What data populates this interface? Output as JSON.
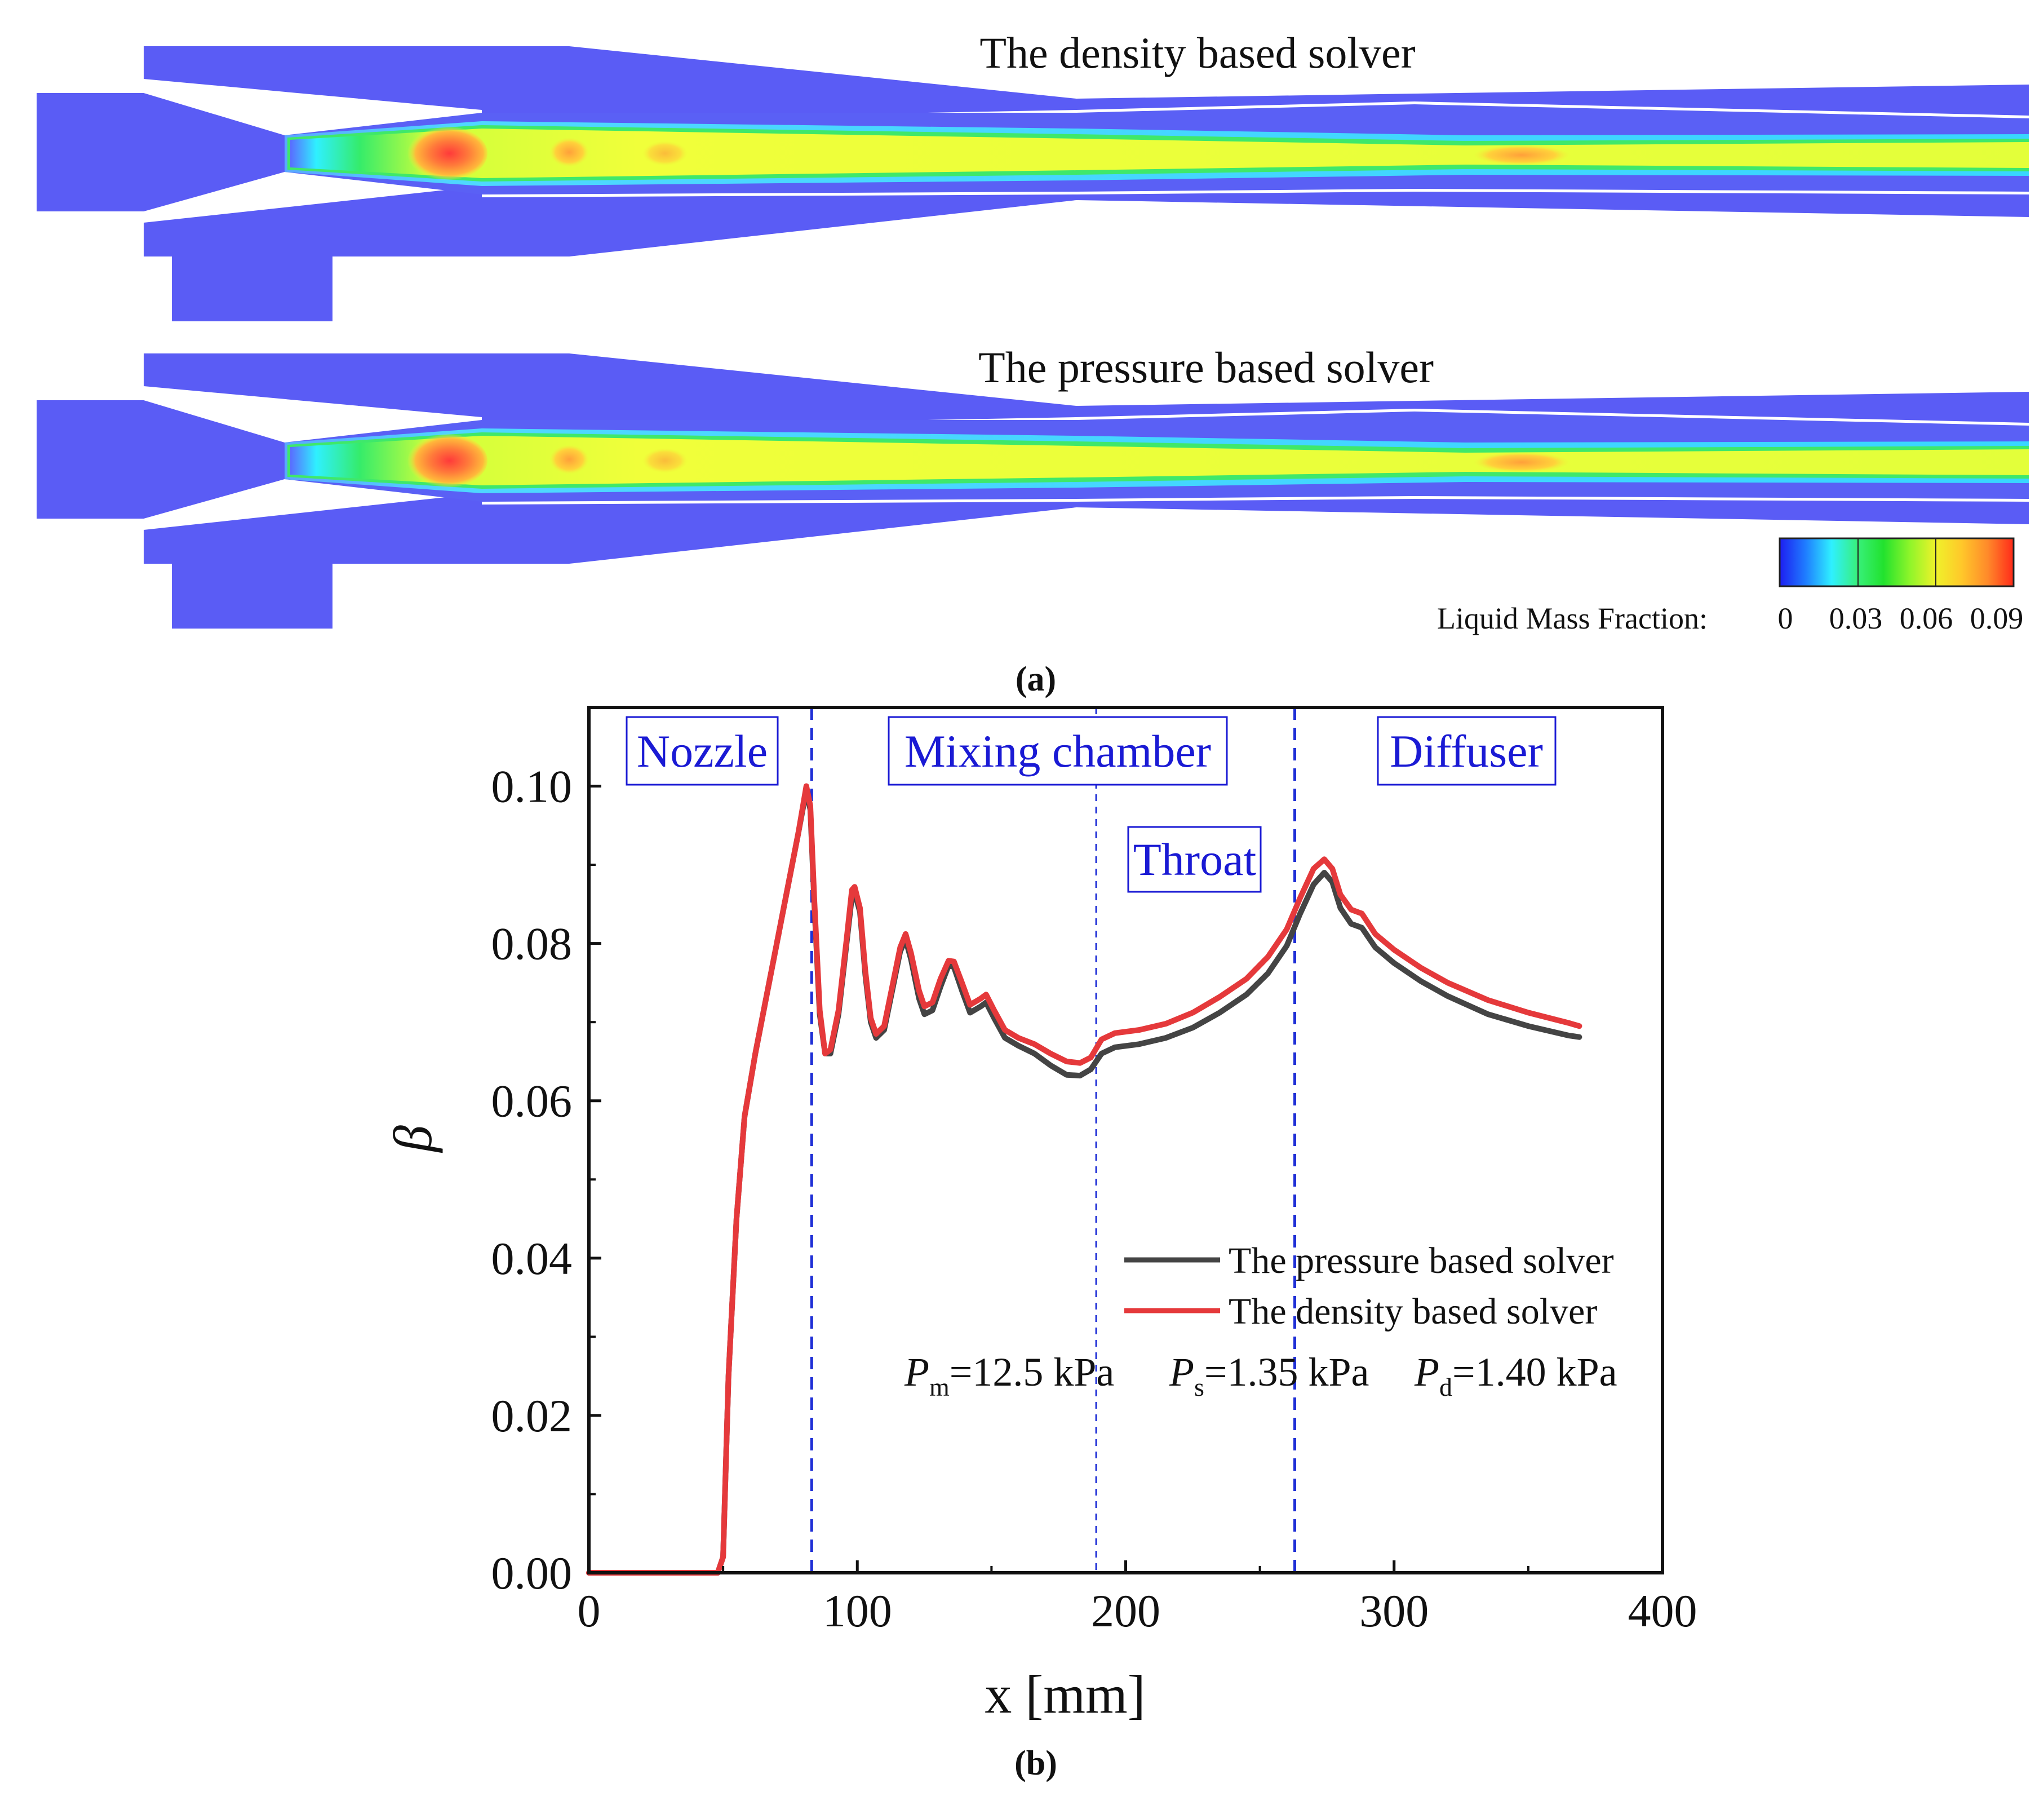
{
  "colors": {
    "background_blue": "#5a5cf5",
    "jet_core": "#e6ff3a",
    "hot_spot": "#ff4d4d",
    "pressure_line": "#444444",
    "density_line": "#e5393b",
    "region_line": "#1f2fd6",
    "region_text": "#1a1ad4"
  },
  "panel_a": {
    "density_label": "The density based solver",
    "pressure_label": "The pressure based solver",
    "colorbar_title": "Liquid Mass Fraction:",
    "colorbar_ticks": [
      "0",
      "0.03",
      "0.06",
      "0.09"
    ],
    "colorbar_stops": [
      "#1e1ef0",
      "#1f7dff",
      "#2ff0ff",
      "#38f07a",
      "#22e22e",
      "#8ef52a",
      "#eff22a",
      "#ffc82a",
      "#ff8a2a",
      "#ff2a1a"
    ],
    "caption": "(a)"
  },
  "panel_b": {
    "caption": "(b)",
    "region_labels": {
      "nozzle": "Nozzle",
      "mixing": "Mixing chamber",
      "throat": "Throat",
      "diffuser": "Diffuser"
    },
    "annotation": {
      "pm_symbol": "P",
      "pm_sub": "m",
      "pm_value": "=12.5 kPa",
      "ps_symbol": "P",
      "ps_sub": "s",
      "ps_value": "=1.35 kPa",
      "pd_symbol": "P",
      "pd_sub": "d",
      "pd_value": "=1.40 kPa"
    }
  },
  "chart_data": {
    "type": "line",
    "xlabel": "x [mm]",
    "ylabel": "β",
    "xlim": [
      0,
      400
    ],
    "ylim": [
      0,
      0.11
    ],
    "xticks": [
      0,
      100,
      200,
      300,
      400
    ],
    "xtick_labels": [
      "0",
      "100",
      "200",
      "300",
      "400"
    ],
    "yticks": [
      0,
      0.02,
      0.04,
      0.06,
      0.08,
      0.1
    ],
    "ytick_labels": [
      "0.00",
      "0.02",
      "0.04",
      "0.06",
      "0.08",
      "0.10"
    ],
    "region_boundaries": [
      83,
      189,
      263
    ],
    "legend_position": "center-right",
    "series": [
      {
        "name": "The pressure based solver",
        "color": "#444444",
        "points": [
          [
            0,
            0
          ],
          [
            48,
            0
          ],
          [
            50,
            0.002
          ],
          [
            52,
            0.025
          ],
          [
            55,
            0.045
          ],
          [
            58,
            0.058
          ],
          [
            62,
            0.066
          ],
          [
            66,
            0.073
          ],
          [
            70,
            0.08
          ],
          [
            74,
            0.087
          ],
          [
            78,
            0.094
          ],
          [
            81,
            0.0995
          ],
          [
            82.5,
            0.097
          ],
          [
            84,
            0.085
          ],
          [
            86,
            0.071
          ],
          [
            88,
            0.066
          ],
          [
            90,
            0.066
          ],
          [
            93,
            0.071
          ],
          [
            96,
            0.08
          ],
          [
            98,
            0.086
          ],
          [
            99,
            0.0865
          ],
          [
            101,
            0.084
          ],
          [
            103,
            0.076
          ],
          [
            105,
            0.07
          ],
          [
            107,
            0.068
          ],
          [
            110,
            0.069
          ],
          [
            113,
            0.074
          ],
          [
            116,
            0.079
          ],
          [
            118,
            0.0805
          ],
          [
            120,
            0.078
          ],
          [
            123,
            0.073
          ],
          [
            125,
            0.071
          ],
          [
            128,
            0.0715
          ],
          [
            131,
            0.0745
          ],
          [
            134,
            0.0772
          ],
          [
            136,
            0.077
          ],
          [
            139,
            0.074
          ],
          [
            142,
            0.0712
          ],
          [
            146,
            0.072
          ],
          [
            148,
            0.0725
          ],
          [
            151,
            0.0705
          ],
          [
            155,
            0.068
          ],
          [
            160,
            0.067
          ],
          [
            166,
            0.066
          ],
          [
            172,
            0.0645
          ],
          [
            178,
            0.0633
          ],
          [
            183,
            0.0632
          ],
          [
            187,
            0.064
          ],
          [
            191,
            0.066
          ],
          [
            196,
            0.0668
          ],
          [
            205,
            0.0672
          ],
          [
            215,
            0.068
          ],
          [
            225,
            0.0693
          ],
          [
            235,
            0.0712
          ],
          [
            245,
            0.0735
          ],
          [
            253,
            0.0762
          ],
          [
            260,
            0.0797
          ],
          [
            265,
            0.0838
          ],
          [
            270,
            0.0875
          ],
          [
            274,
            0.089
          ],
          [
            277,
            0.0878
          ],
          [
            280,
            0.0845
          ],
          [
            284,
            0.0825
          ],
          [
            288,
            0.082
          ],
          [
            293,
            0.0795
          ],
          [
            300,
            0.0775
          ],
          [
            310,
            0.0752
          ],
          [
            320,
            0.0733
          ],
          [
            335,
            0.071
          ],
          [
            350,
            0.0695
          ],
          [
            365,
            0.0683
          ],
          [
            369,
            0.0681
          ]
        ]
      },
      {
        "name": "The density based solver",
        "color": "#e5393b",
        "points": [
          [
            0,
            0
          ],
          [
            48,
            0
          ],
          [
            50,
            0.002
          ],
          [
            52,
            0.025
          ],
          [
            55,
            0.045
          ],
          [
            58,
            0.058
          ],
          [
            62,
            0.066
          ],
          [
            66,
            0.073
          ],
          [
            70,
            0.08
          ],
          [
            74,
            0.087
          ],
          [
            78,
            0.094
          ],
          [
            81,
            0.1
          ],
          [
            82.5,
            0.0975
          ],
          [
            84,
            0.0855
          ],
          [
            86,
            0.0715
          ],
          [
            88,
            0.066
          ],
          [
            90,
            0.0665
          ],
          [
            93,
            0.0715
          ],
          [
            96,
            0.0805
          ],
          [
            98,
            0.0868
          ],
          [
            99,
            0.0872
          ],
          [
            101,
            0.0845
          ],
          [
            103,
            0.0765
          ],
          [
            105,
            0.0705
          ],
          [
            107,
            0.0685
          ],
          [
            110,
            0.0695
          ],
          [
            113,
            0.0745
          ],
          [
            116,
            0.0795
          ],
          [
            118,
            0.0812
          ],
          [
            120,
            0.0788
          ],
          [
            123,
            0.074
          ],
          [
            125,
            0.072
          ],
          [
            128,
            0.0725
          ],
          [
            131,
            0.0755
          ],
          [
            134,
            0.0778
          ],
          [
            136,
            0.0777
          ],
          [
            139,
            0.075
          ],
          [
            142,
            0.0722
          ],
          [
            146,
            0.073
          ],
          [
            148,
            0.0735
          ],
          [
            151,
            0.0715
          ],
          [
            155,
            0.069
          ],
          [
            160,
            0.068
          ],
          [
            166,
            0.0672
          ],
          [
            172,
            0.066
          ],
          [
            178,
            0.065
          ],
          [
            183,
            0.0648
          ],
          [
            187,
            0.0655
          ],
          [
            191,
            0.0678
          ],
          [
            196,
            0.0686
          ],
          [
            205,
            0.069
          ],
          [
            215,
            0.0698
          ],
          [
            225,
            0.0712
          ],
          [
            235,
            0.0732
          ],
          [
            245,
            0.0755
          ],
          [
            253,
            0.0783
          ],
          [
            260,
            0.0818
          ],
          [
            265,
            0.0858
          ],
          [
            270,
            0.0895
          ],
          [
            274,
            0.0907
          ],
          [
            277,
            0.0895
          ],
          [
            280,
            0.0862
          ],
          [
            284,
            0.0843
          ],
          [
            288,
            0.0838
          ],
          [
            293,
            0.0812
          ],
          [
            300,
            0.0792
          ],
          [
            310,
            0.0769
          ],
          [
            320,
            0.075
          ],
          [
            335,
            0.0728
          ],
          [
            350,
            0.0712
          ],
          [
            365,
            0.0699
          ],
          [
            369,
            0.0695
          ]
        ]
      }
    ]
  }
}
